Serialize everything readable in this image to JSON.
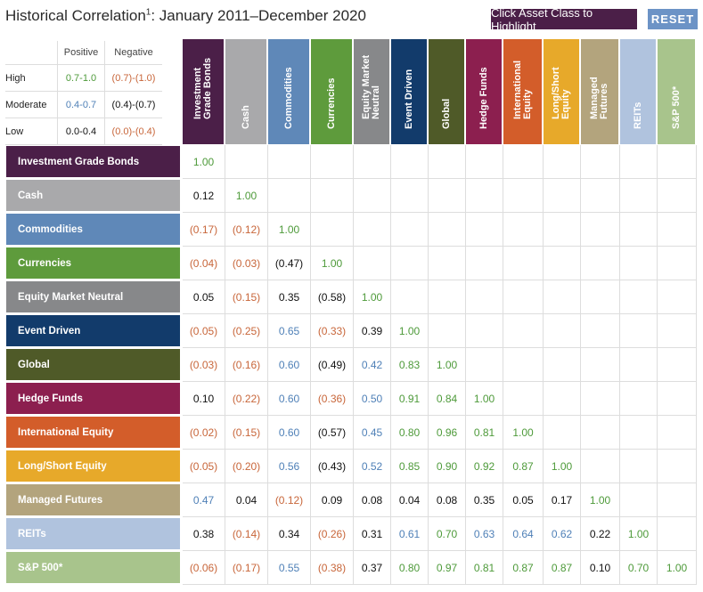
{
  "title": "Historical Correlation",
  "title_sup": "1",
  "title_suffix": ": January 2011–December 2020",
  "highlight_button": "Click Asset Class to Highlight",
  "reset_button": "RESET",
  "legend": {
    "headers": [
      "Positive",
      "Negative"
    ],
    "rows": [
      {
        "label": "High",
        "positive": "0.7-1.0",
        "negative": "(0.7)-(1.0)",
        "pos_color": "#4e9a3a",
        "neg_color": "#c8663a"
      },
      {
        "label": "Moderate",
        "positive": "0.4-0.7",
        "negative": "(0.4)-(0.7)",
        "pos_color": "#4f80b7",
        "neg_color": "#111111"
      },
      {
        "label": "Low",
        "positive": "0.0-0.4",
        "negative": "(0.0)-(0.4)",
        "pos_color": "#111111",
        "neg_color": "#c8663a"
      }
    ]
  },
  "chart_data": {
    "type": "table",
    "title": "Historical Correlation1: January 2011–December 2020",
    "assets": [
      {
        "name": "Investment Grade Bonds",
        "short": "Investment\nGrade Bonds",
        "color": "#4b1f48"
      },
      {
        "name": "Cash",
        "short": "Cash",
        "color": "#a9a9ab"
      },
      {
        "name": "Commodities",
        "short": "Commodities",
        "color": "#5f88b8"
      },
      {
        "name": "Currencies",
        "short": "Currencies",
        "color": "#5e9b3c"
      },
      {
        "name": "Equity Market Neutral",
        "short": "Equity Market\nNeutral",
        "color": "#87888a"
      },
      {
        "name": "Event Driven",
        "short": "Event Driven",
        "color": "#123b6b"
      },
      {
        "name": "Global",
        "short": "Global",
        "color": "#4f5a28"
      },
      {
        "name": "Hedge Funds",
        "short": "Hedge Funds",
        "color": "#8c1f4f"
      },
      {
        "name": "International Equity",
        "short": "International\nEquity",
        "color": "#d35d2a"
      },
      {
        "name": "Long/Short Equity",
        "short": "Long/Short\nEquity",
        "color": "#e7a92a"
      },
      {
        "name": "Managed Futures",
        "short": "Managed\nFutures",
        "color": "#b3a47d"
      },
      {
        "name": "REITs",
        "short": "REITs",
        "color": "#b0c3de"
      },
      {
        "name": "S&P 500*",
        "short": "S&P 500*",
        "color": "#a8c48c"
      }
    ],
    "values": [
      [
        "1.00"
      ],
      [
        "0.12",
        "1.00"
      ],
      [
        "(0.17)",
        "(0.12)",
        "1.00"
      ],
      [
        "(0.04)",
        "(0.03)",
        "(0.47)",
        "1.00"
      ],
      [
        "0.05",
        "(0.15)",
        "0.35",
        "(0.58)",
        "1.00"
      ],
      [
        "(0.05)",
        "(0.25)",
        "0.65",
        "(0.33)",
        "0.39",
        "1.00"
      ],
      [
        "(0.03)",
        "(0.16)",
        "0.60",
        "(0.49)",
        "0.42",
        "0.83",
        "1.00"
      ],
      [
        "0.10",
        "(0.22)",
        "0.60",
        "(0.36)",
        "0.50",
        "0.91",
        "0.84",
        "1.00"
      ],
      [
        "(0.02)",
        "(0.15)",
        "0.60",
        "(0.57)",
        "0.45",
        "0.80",
        "0.96",
        "0.81",
        "1.00"
      ],
      [
        "(0.05)",
        "(0.20)",
        "0.56",
        "(0.43)",
        "0.52",
        "0.85",
        "0.90",
        "0.92",
        "0.87",
        "1.00"
      ],
      [
        "0.47",
        "0.04",
        "(0.12)",
        "0.09",
        "0.08",
        "0.04",
        "0.08",
        "0.35",
        "0.05",
        "0.17",
        "1.00"
      ],
      [
        "0.38",
        "(0.14)",
        "0.34",
        "(0.26)",
        "0.31",
        "0.61",
        "0.70",
        "0.63",
        "0.64",
        "0.62",
        "0.22",
        "1.00"
      ],
      [
        "(0.06)",
        "(0.17)",
        "0.55",
        "(0.38)",
        "0.37",
        "0.80",
        "0.97",
        "0.81",
        "0.87",
        "0.87",
        "0.10",
        "0.70",
        "1.00"
      ]
    ]
  }
}
